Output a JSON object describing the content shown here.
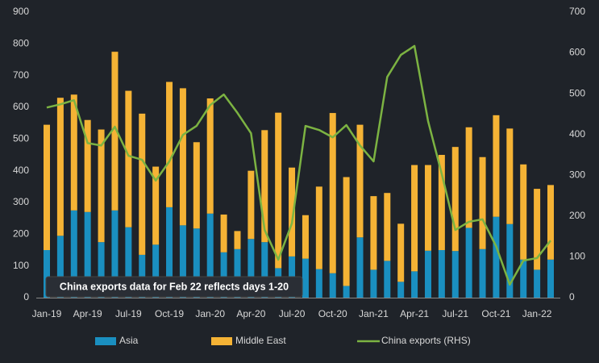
{
  "chart_data": {
    "type": "bar-line",
    "annotation": "China exports data for Feb 22 reflects days 1-20",
    "categories": [
      "Jan-19",
      null,
      null,
      "Apr-19",
      null,
      null,
      "Jul-19",
      null,
      null,
      "Oct-19",
      null,
      null,
      "Jan-20",
      null,
      null,
      "Apr-20",
      null,
      null,
      "Jul-20",
      null,
      null,
      "Oct-20",
      null,
      null,
      "Jan-21",
      null,
      null,
      "Apr-21",
      null,
      null,
      "Jul-21",
      null,
      null,
      "Oct-21",
      null,
      null,
      "Jan-22",
      null
    ],
    "series": [
      {
        "name": "Asia",
        "color": "#1a8fc0",
        "kind": "bar",
        "values": [
          150,
          195,
          275,
          270,
          175,
          275,
          222,
          135,
          167,
          285,
          228,
          218,
          265,
          143,
          153,
          185,
          175,
          93,
          130,
          123,
          90,
          77,
          37,
          190,
          88,
          116,
          50,
          83,
          148,
          150,
          147,
          220,
          153,
          255,
          232,
          120,
          88,
          120
        ]
      },
      {
        "name": "Middle East",
        "color": "#f5b335",
        "kind": "bar",
        "values": [
          395,
          435,
          365,
          290,
          355,
          500,
          430,
          445,
          246,
          395,
          432,
          272,
          363,
          119,
          57,
          215,
          353,
          490,
          280,
          137,
          260,
          505,
          343,
          355,
          232,
          214,
          183,
          335,
          270,
          300,
          328,
          317,
          290,
          320,
          301,
          300,
          255,
          235
        ]
      },
      {
        "name": "China exports (RHS)",
        "color": "#7cb342",
        "kind": "line",
        "axis": "y2",
        "values": [
          466,
          474,
          484,
          379,
          373,
          419,
          348,
          338,
          287,
          334,
          399,
          421,
          472,
          498,
          453,
          403,
          166,
          93,
          182,
          421,
          411,
          393,
          423,
          373,
          334,
          541,
          595,
          617,
          433,
          304,
          166,
          186,
          192,
          126,
          32,
          91,
          97,
          140
        ]
      }
    ],
    "ylim": [
      0,
      900
    ],
    "yticks": [
      0,
      100,
      200,
      300,
      400,
      500,
      600,
      700,
      800,
      900
    ],
    "y2lim": [
      0,
      700
    ],
    "y2ticks": [
      0,
      100,
      200,
      300,
      400,
      500,
      600,
      700
    ]
  }
}
